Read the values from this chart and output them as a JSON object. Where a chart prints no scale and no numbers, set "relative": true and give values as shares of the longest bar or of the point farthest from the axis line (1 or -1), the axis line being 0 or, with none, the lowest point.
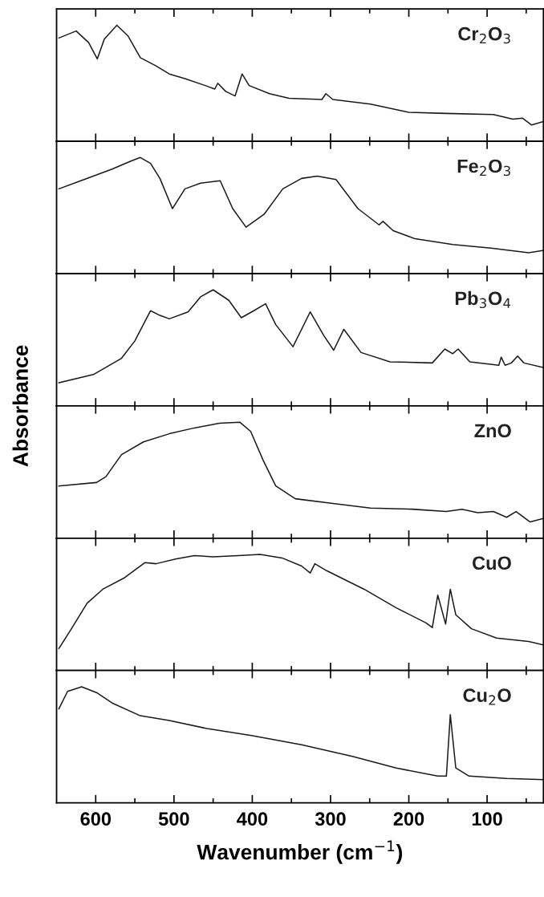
{
  "chart_data": [
    {
      "type": "line",
      "relative": true,
      "tick_labels": false,
      "xlim": [
        650,
        28
      ],
      "xticks": [
        600,
        {
          "value": 550,
          "label": null
        },
        500,
        {
          "value": 450,
          "label": null
        },
        400,
        {
          "value": 350,
          "label": null
        },
        300,
        {
          "value": 250,
          "label": null
        },
        200,
        {
          "value": 150,
          "label": null
        },
        100,
        {
          "value": 50,
          "label": null
        }
      ],
      "series": [
        {
          "name": "Cr$_{2}$O$_{3}$",
          "color": "#1a1a1a",
          "x": [
            647,
            625,
            609,
            598,
            589,
            573,
            559,
            543,
            523,
            506,
            486,
            460,
            448,
            444,
            434,
            422,
            413,
            404,
            378,
            353,
            311,
            306,
            297,
            249,
            200,
            152,
            92,
            67,
            55,
            43,
            28
          ],
          "values": [
            0.89,
            0.95,
            0.85,
            0.71,
            0.88,
            1.0,
            0.91,
            0.72,
            0.65,
            0.58,
            0.54,
            0.48,
            0.45,
            0.5,
            0.43,
            0.39,
            0.58,
            0.48,
            0.41,
            0.37,
            0.36,
            0.41,
            0.36,
            0.32,
            0.25,
            0.24,
            0.23,
            0.19,
            0.2,
            0.14,
            0.17
          ]
        }
      ]
    },
    {
      "type": "line",
      "relative": true,
      "tick_labels": false,
      "xlim": [
        650,
        28
      ],
      "xticks": [
        600,
        {
          "value": 550,
          "label": null
        },
        500,
        {
          "value": 450,
          "label": null
        },
        400,
        {
          "value": 350,
          "label": null
        },
        300,
        {
          "value": 250,
          "label": null
        },
        200,
        {
          "value": 150,
          "label": null
        },
        100,
        {
          "value": 50,
          "label": null
        }
      ],
      "series": [
        {
          "name": "Fe$_{2}$O$_{3}$",
          "color": "#1a1a1a",
          "x": [
            647,
            619,
            579,
            555,
            543,
            530,
            518,
            502,
            486,
            466,
            441,
            425,
            408,
            385,
            361,
            337,
            317,
            293,
            265,
            238,
            233,
            220,
            192,
            144,
            95,
            47,
            28
          ],
          "values": [
            0.73,
            0.8,
            0.9,
            0.97,
            1.0,
            0.95,
            0.82,
            0.56,
            0.73,
            0.78,
            0.8,
            0.56,
            0.4,
            0.51,
            0.73,
            0.82,
            0.84,
            0.81,
            0.56,
            0.42,
            0.45,
            0.37,
            0.3,
            0.25,
            0.22,
            0.18,
            0.2
          ]
        }
      ]
    },
    {
      "type": "line",
      "relative": true,
      "tick_labels": false,
      "ylabel": "Absorbance",
      "xlim": [
        650,
        28
      ],
      "xticks": [
        600,
        {
          "value": 550,
          "label": null
        },
        500,
        {
          "value": 450,
          "label": null
        },
        400,
        {
          "value": 350,
          "label": null
        },
        300,
        {
          "value": 250,
          "label": null
        },
        200,
        {
          "value": 150,
          "label": null
        },
        100,
        {
          "value": 50,
          "label": null
        }
      ],
      "series": [
        {
          "name": "Pb$_{3}$O$_{4}$",
          "color": "#1a1a1a",
          "x": [
            647,
            603,
            567,
            550,
            530,
            518,
            506,
            482,
            466,
            450,
            430,
            414,
            398,
            383,
            370,
            348,
            326,
            309,
            296,
            283,
            261,
            224,
            170,
            154,
            144,
            137,
            122,
            85,
            82,
            77,
            69,
            61,
            53,
            28
          ],
          "values": [
            0.2,
            0.27,
            0.41,
            0.56,
            0.82,
            0.78,
            0.75,
            0.81,
            0.94,
            1.0,
            0.91,
            0.76,
            0.82,
            0.88,
            0.7,
            0.51,
            0.81,
            0.61,
            0.48,
            0.66,
            0.46,
            0.38,
            0.37,
            0.49,
            0.45,
            0.49,
            0.38,
            0.35,
            0.42,
            0.35,
            0.37,
            0.43,
            0.37,
            0.33
          ]
        }
      ]
    },
    {
      "type": "line",
      "relative": true,
      "tick_labels": false,
      "xlim": [
        650,
        28
      ],
      "xticks": [
        600,
        {
          "value": 550,
          "label": null
        },
        500,
        {
          "value": 450,
          "label": null
        },
        400,
        {
          "value": 350,
          "label": null
        },
        300,
        {
          "value": 250,
          "label": null
        },
        200,
        {
          "value": 150,
          "label": null
        },
        100,
        {
          "value": 50,
          "label": null
        }
      ],
      "series": [
        {
          "name": "ZnO",
          "color": "#1a1a1a",
          "x": [
            647,
            599,
            587,
            567,
            539,
            506,
            474,
            442,
            416,
            402,
            386,
            370,
            345,
            297,
            249,
            196,
            152,
            132,
            112,
            92,
            75,
            63,
            45,
            28
          ],
          "values": [
            0.45,
            0.48,
            0.53,
            0.72,
            0.83,
            0.9,
            0.95,
            0.99,
            1.0,
            0.92,
            0.67,
            0.45,
            0.34,
            0.3,
            0.26,
            0.25,
            0.23,
            0.25,
            0.22,
            0.23,
            0.18,
            0.23,
            0.14,
            0.17
          ]
        }
      ]
    },
    {
      "type": "line",
      "relative": true,
      "tick_labels": false,
      "xlim": [
        650,
        28
      ],
      "xticks": [
        600,
        {
          "value": 550,
          "label": null
        },
        500,
        {
          "value": 450,
          "label": null
        },
        400,
        {
          "value": 350,
          "label": null
        },
        300,
        {
          "value": 250,
          "label": null
        },
        200,
        {
          "value": 150,
          "label": null
        },
        100,
        {
          "value": 50,
          "label": null
        }
      ],
      "series": [
        {
          "name": "CuO",
          "color": "#1a1a1a",
          "x": [
            647,
            631,
            611,
            591,
            563,
            537,
            523,
            498,
            474,
            450,
            418,
            390,
            362,
            337,
            326,
            320,
            305,
            257,
            216,
            178,
            170,
            163,
            153,
            147,
            140,
            120,
            88,
            47,
            28
          ],
          "values": [
            0.19,
            0.36,
            0.58,
            0.7,
            0.8,
            0.93,
            0.92,
            0.96,
            0.99,
            0.98,
            0.99,
            1.0,
            0.97,
            0.9,
            0.84,
            0.92,
            0.86,
            0.7,
            0.54,
            0.41,
            0.37,
            0.65,
            0.4,
            0.7,
            0.48,
            0.36,
            0.28,
            0.25,
            0.22
          ]
        }
      ]
    },
    {
      "type": "line",
      "relative": true,
      "tick_labels": "x",
      "xlabel": "Wavenumber (cm$^{−1}$)",
      "xlim": [
        650,
        28
      ],
      "xticks": [
        600,
        {
          "value": 550,
          "label": null
        },
        500,
        {
          "value": 450,
          "label": null
        },
        400,
        {
          "value": 350,
          "label": null
        },
        300,
        {
          "value": 250,
          "label": null
        },
        200,
        {
          "value": 150,
          "label": null
        },
        100,
        {
          "value": 50,
          "label": null
        }
      ],
      "series": [
        {
          "name": "Cu$_{2}$O",
          "color": "#1a1a1a",
          "x": [
            647,
            636,
            618,
            599,
            579,
            543,
            506,
            458,
            401,
            337,
            272,
            216,
            163,
            152,
            147,
            140,
            123,
            75,
            28
          ],
          "values": [
            0.81,
            0.96,
            1.0,
            0.95,
            0.86,
            0.75,
            0.71,
            0.64,
            0.58,
            0.5,
            0.4,
            0.3,
            0.23,
            0.23,
            0.76,
            0.3,
            0.23,
            0.21,
            0.2
          ]
        }
      ]
    }
  ]
}
